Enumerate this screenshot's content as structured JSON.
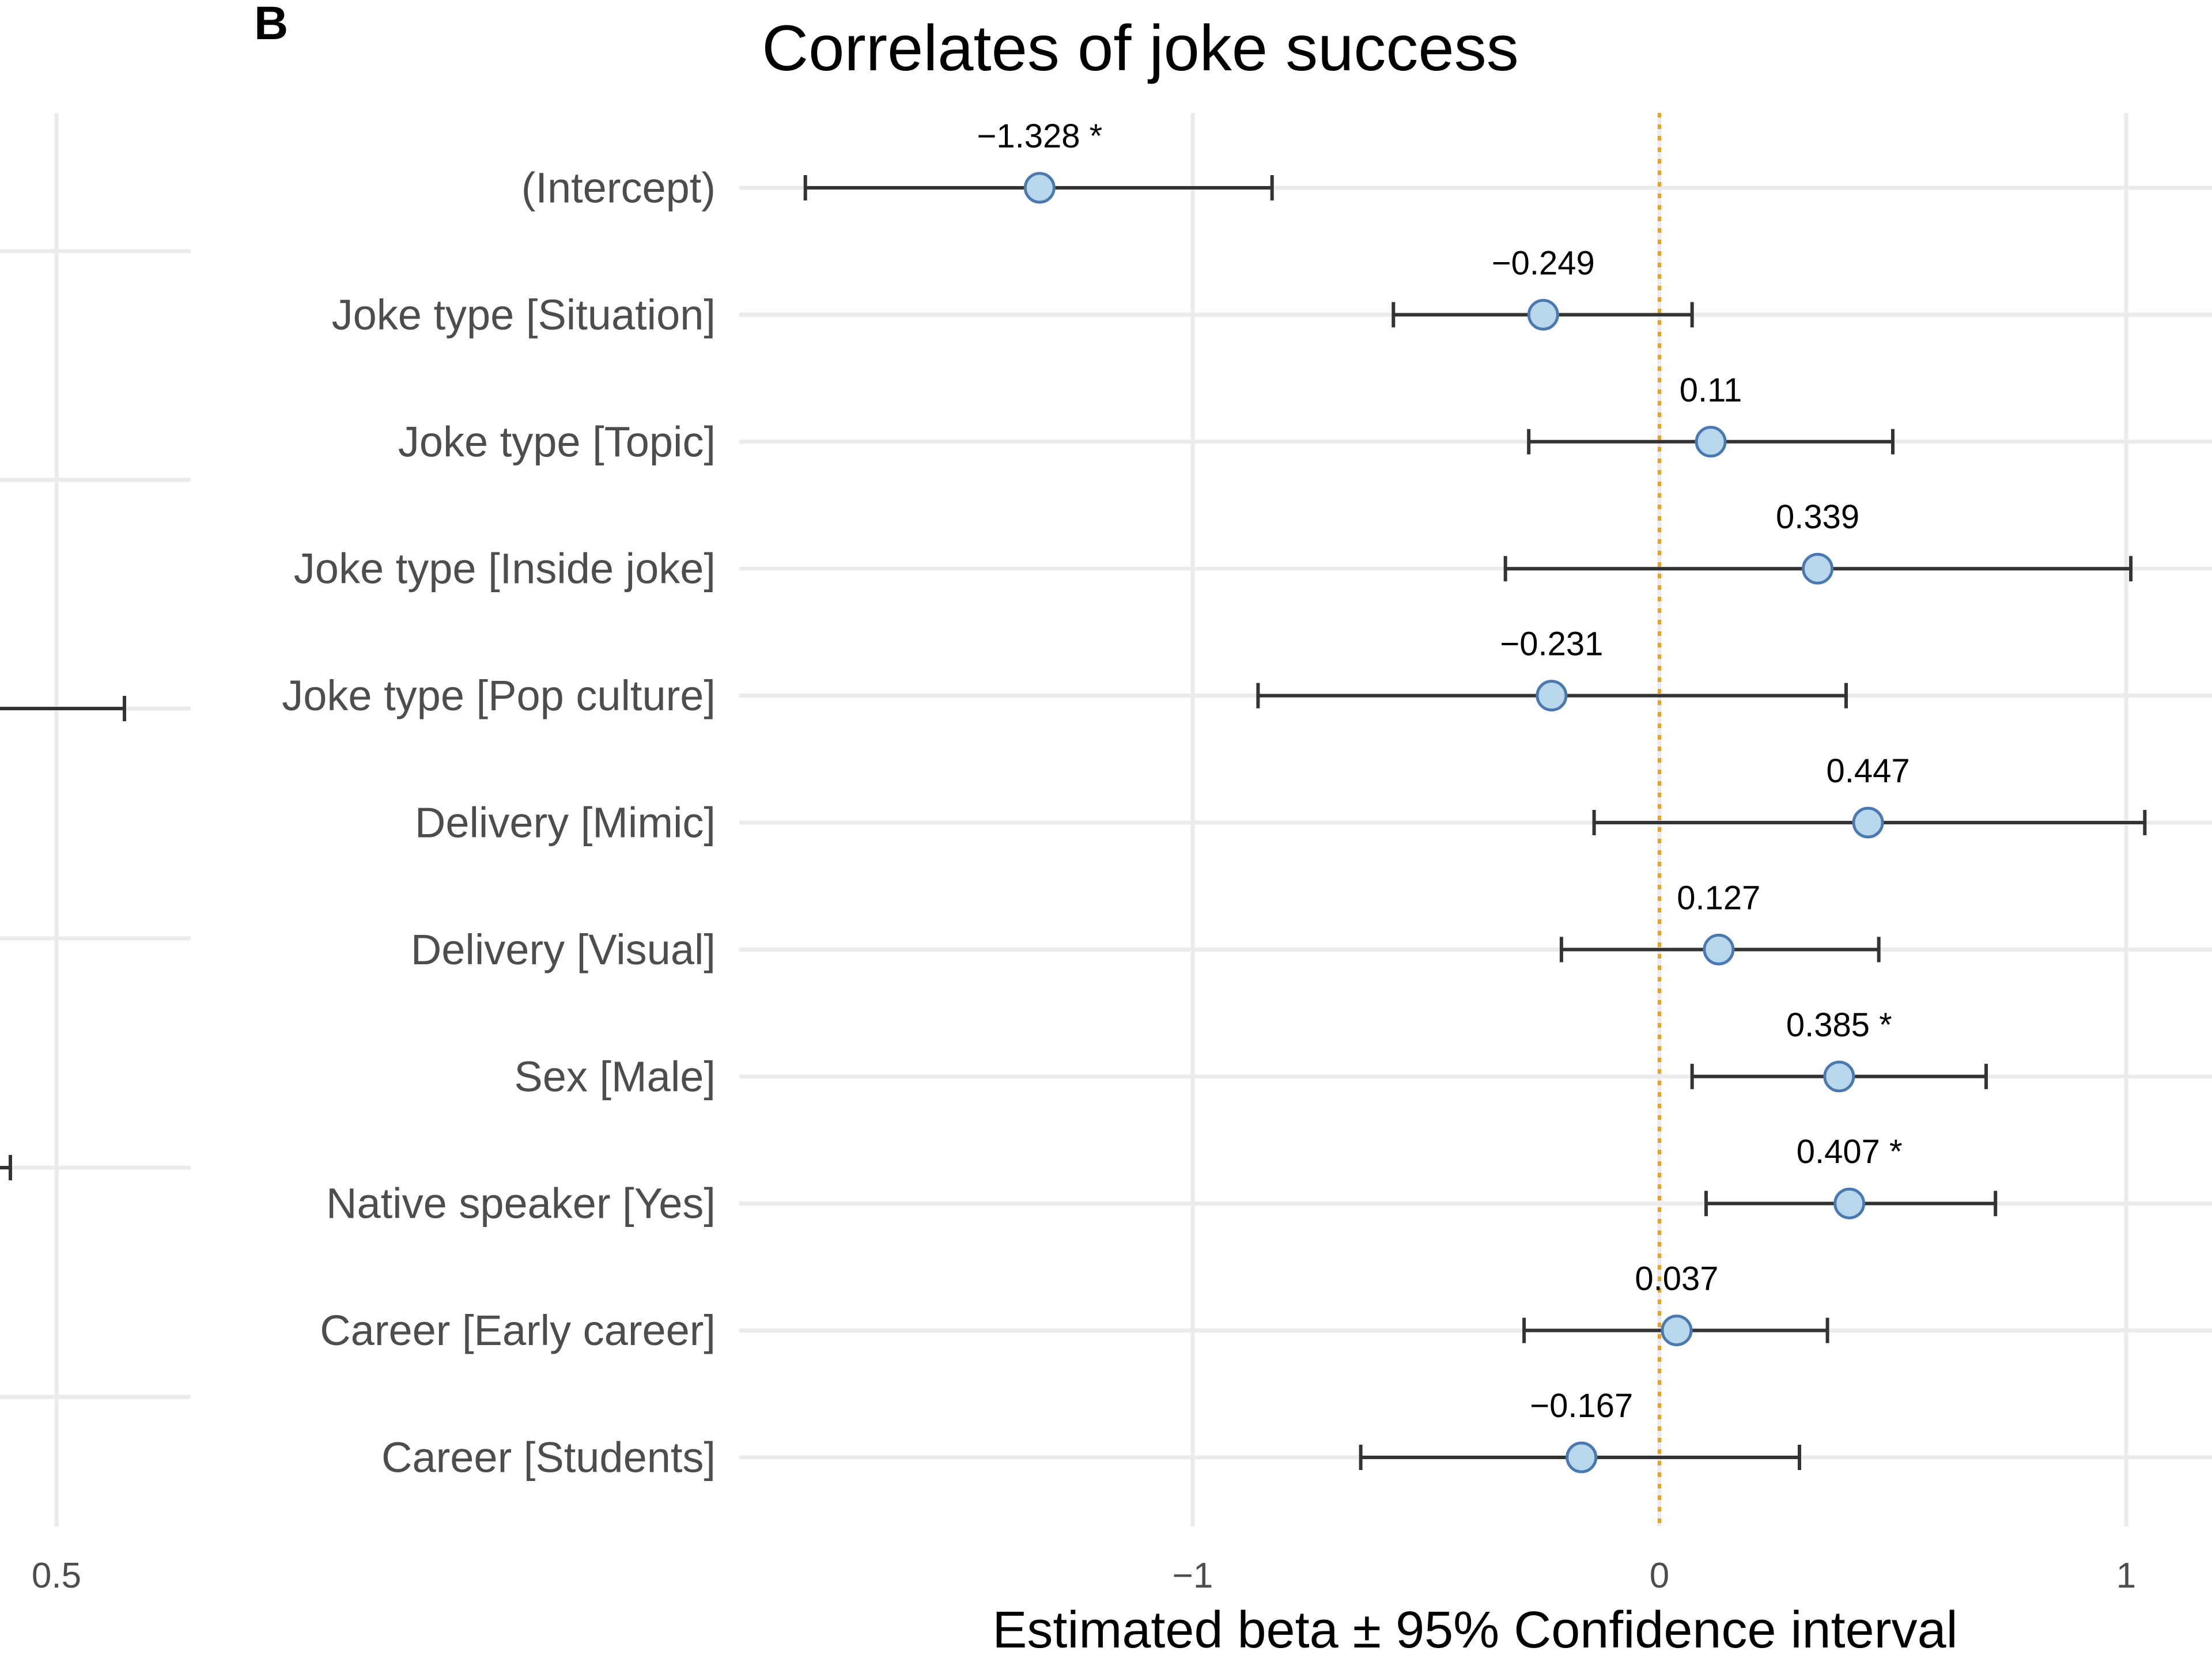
{
  "panel_label": "B",
  "left_panel": {
    "tick_labels": [
      "0.5"
    ]
  },
  "chart_data": {
    "type": "forest",
    "title": "Correlates of joke success",
    "xlabel": "Estimated beta ± 95% Confidence interval",
    "ylabel": "",
    "xlim": [
      -1.95,
      1.18
    ],
    "xticks": [
      -1,
      0,
      1
    ],
    "xtick_labels": [
      "−1",
      "0",
      "1"
    ],
    "reference_line": 0,
    "grid": true,
    "colors": {
      "point_fill": "#b8d7ea",
      "point_stroke": "#4a78b0",
      "bar": "#333333",
      "reference": "#e8a12a",
      "grid": "#ebebeb"
    },
    "rows": [
      {
        "label": "(Intercept)",
        "estimate": -1.328,
        "ci": [
          -1.83,
          -0.83
        ],
        "text": "−1.328 *"
      },
      {
        "label": "Joke type [Situation]",
        "estimate": -0.249,
        "ci": [
          -0.57,
          0.07
        ],
        "text": "−0.249"
      },
      {
        "label": "Joke type [Topic]",
        "estimate": 0.11,
        "ci": [
          -0.28,
          0.5
        ],
        "text": "0.11"
      },
      {
        "label": "Joke type [Inside joke]",
        "estimate": 0.339,
        "ci": [
          -0.33,
          1.01
        ],
        "text": "0.339"
      },
      {
        "label": "Joke type [Pop culture]",
        "estimate": -0.231,
        "ci": [
          -0.86,
          0.4
        ],
        "text": "−0.231"
      },
      {
        "label": "Delivery [Mimic]",
        "estimate": 0.447,
        "ci": [
          -0.14,
          1.04
        ],
        "text": "0.447"
      },
      {
        "label": "Delivery [Visual]",
        "estimate": 0.127,
        "ci": [
          -0.21,
          0.47
        ],
        "text": "0.127"
      },
      {
        "label": "Sex [Male]",
        "estimate": 0.385,
        "ci": [
          0.07,
          0.7
        ],
        "text": "0.385 *"
      },
      {
        "label": "Native speaker [Yes]",
        "estimate": 0.407,
        "ci": [
          0.1,
          0.72
        ],
        "text": "0.407 *"
      },
      {
        "label": "Career [Early career]",
        "estimate": 0.037,
        "ci": [
          -0.29,
          0.36
        ],
        "text": "0.037"
      },
      {
        "label": "Career [Students]",
        "estimate": -0.167,
        "ci": [
          -0.64,
          0.3
        ],
        "text": "−0.167"
      }
    ]
  }
}
